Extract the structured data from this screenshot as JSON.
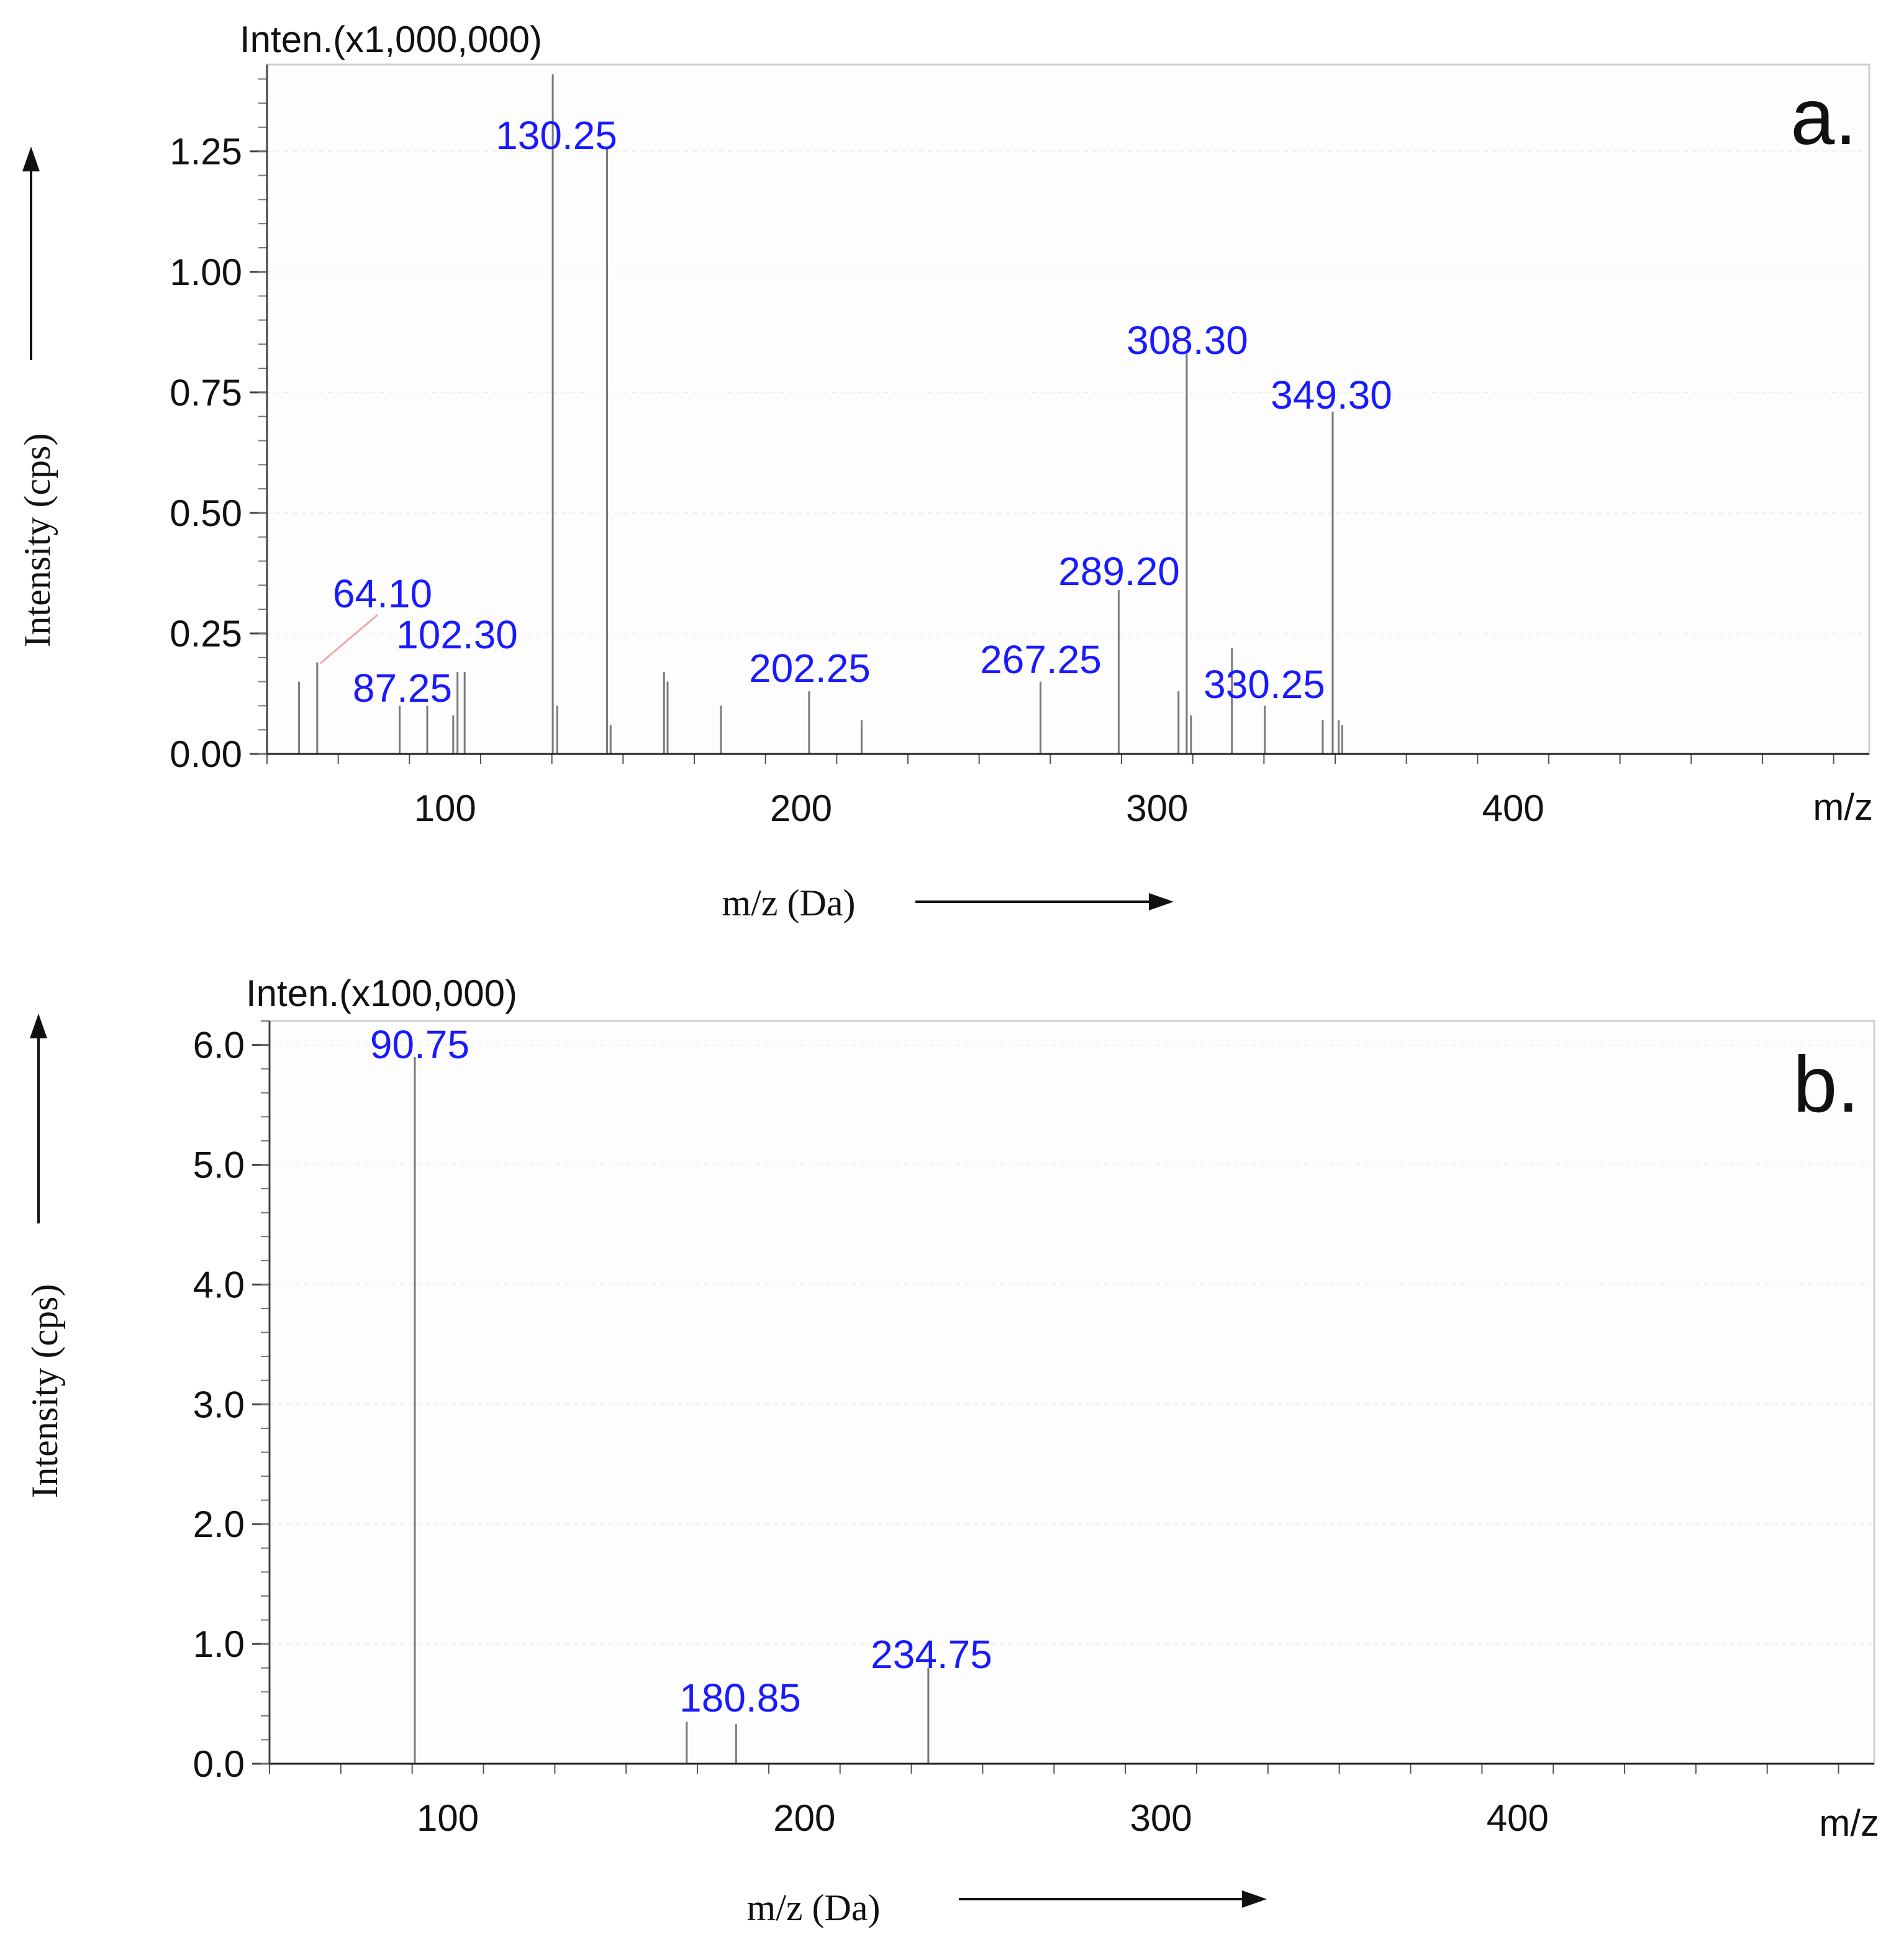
{
  "chart_data": [
    {
      "type": "bar",
      "panel_label": "a.",
      "y_scale_label": "Inten.(x1,000,000)",
      "xlabel": "m/z (Da)",
      "ylabel": "Intensity (cps)",
      "x_corner_label": "m/z",
      "xlim": [
        50,
        500
      ],
      "ylim": [
        0,
        1.43
      ],
      "x_ticks": [
        "100",
        "200",
        "300",
        "400"
      ],
      "y_ticks": [
        "0.00",
        "0.25",
        "0.50",
        "0.75",
        "1.00",
        "1.25"
      ],
      "labeled_peaks": [
        {
          "mz": 64.1,
          "intensity": 0.19,
          "label": "64.10"
        },
        {
          "mz": 87.25,
          "intensity": 0.1,
          "label": "87.25"
        },
        {
          "mz": 102.3,
          "intensity": 0.08,
          "label": "102.30"
        },
        {
          "mz": 130.25,
          "intensity": 1.41,
          "label": "130.25"
        },
        {
          "mz": 202.25,
          "intensity": 0.13,
          "label": "202.25"
        },
        {
          "mz": 267.25,
          "intensity": 0.15,
          "label": "267.25"
        },
        {
          "mz": 289.2,
          "intensity": 0.34,
          "label": "289.20"
        },
        {
          "mz": 308.3,
          "intensity": 0.83,
          "label": "308.30"
        },
        {
          "mz": 330.25,
          "intensity": 0.1,
          "label": "330.25"
        },
        {
          "mz": 349.3,
          "intensity": 0.71,
          "label": "349.30"
        }
      ],
      "unlabeled_peaks": [
        {
          "mz": 59.0,
          "intensity": 0.15
        },
        {
          "mz": 95.0,
          "intensity": 0.1
        },
        {
          "mz": 103.5,
          "intensity": 0.17
        },
        {
          "mz": 105.5,
          "intensity": 0.17
        },
        {
          "mz": 131.5,
          "intensity": 0.1
        },
        {
          "mz": 145.5,
          "intensity": 1.26
        },
        {
          "mz": 146.5,
          "intensity": 0.06
        },
        {
          "mz": 161.5,
          "intensity": 0.17
        },
        {
          "mz": 162.5,
          "intensity": 0.15
        },
        {
          "mz": 177.5,
          "intensity": 0.1
        },
        {
          "mz": 217.0,
          "intensity": 0.07
        },
        {
          "mz": 306.0,
          "intensity": 0.13
        },
        {
          "mz": 309.5,
          "intensity": 0.08
        },
        {
          "mz": 321.0,
          "intensity": 0.22
        },
        {
          "mz": 346.5,
          "intensity": 0.07
        },
        {
          "mz": 351.0,
          "intensity": 0.07
        },
        {
          "mz": 352.0,
          "intensity": 0.06
        }
      ]
    },
    {
      "type": "bar",
      "panel_label": "b.",
      "y_scale_label": "Inten.(x100,000)",
      "xlabel": "m/z (Da)",
      "ylabel": "Intensity (cps)",
      "x_corner_label": "m/z",
      "xlim": [
        50,
        500
      ],
      "ylim": [
        0,
        6.2
      ],
      "x_ticks": [
        "100",
        "200",
        "300",
        "400"
      ],
      "y_ticks": [
        "0.0",
        "1.0",
        "2.0",
        "3.0",
        "4.0",
        "5.0",
        "6.0"
      ],
      "labeled_peaks": [
        {
          "mz": 90.75,
          "intensity": 5.9,
          "label": "90.75"
        },
        {
          "mz": 180.85,
          "intensity": 0.33,
          "label": "180.85"
        },
        {
          "mz": 234.75,
          "intensity": 0.8,
          "label": "234.75"
        }
      ],
      "unlabeled_peaks": [
        {
          "mz": 167.0,
          "intensity": 0.35
        }
      ]
    }
  ]
}
